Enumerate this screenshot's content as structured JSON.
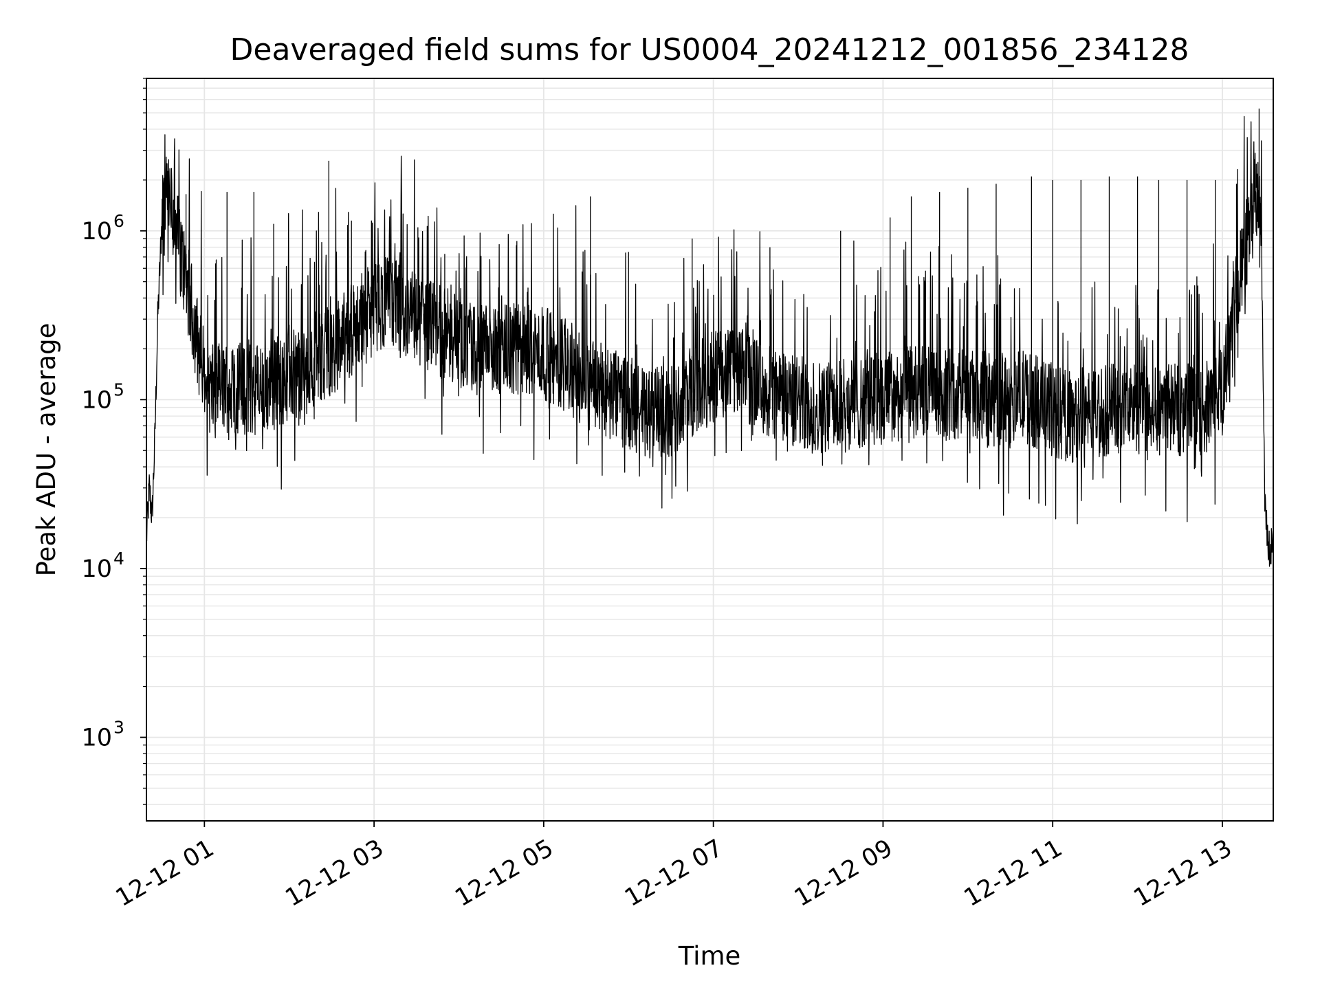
{
  "chart_data": {
    "type": "line",
    "title": "Deaveraged field sums for US0004_20241212_001856_234128",
    "xlabel": "Time",
    "ylabel": "Peak ADU - average",
    "x_axis": {
      "kind": "datetime",
      "range": [
        "2024-12-12T00:19:00",
        "2024-12-12T13:36:00"
      ],
      "tick_values": [
        "2024-12-12T01:00",
        "2024-12-12T03:00",
        "2024-12-12T05:00",
        "2024-12-12T07:00",
        "2024-12-12T09:00",
        "2024-12-12T11:00",
        "2024-12-12T13:00"
      ],
      "tick_labels": [
        "12-12 01",
        "12-12 03",
        "12-12 05",
        "12-12 07",
        "12-12 09",
        "12-12 11",
        "12-12 13"
      ],
      "tick_label_rotation_deg": 30
    },
    "y_axis": {
      "scale": "log",
      "range": [
        320,
        8000000
      ],
      "tick_values": [
        1000,
        10000,
        100000,
        1000000
      ],
      "tick_labels": [
        {
          "base": "10",
          "exp": "3"
        },
        {
          "base": "10",
          "exp": "4"
        },
        {
          "base": "10",
          "exp": "5"
        },
        {
          "base": "10",
          "exp": "6"
        }
      ]
    },
    "grid": true,
    "grid_color": "#e6e6e6",
    "line_color": "#000000",
    "series": [
      {
        "name": "",
        "points": [
          [
            "00:19",
            15000
          ],
          [
            "00:21",
            30000
          ],
          [
            "00:23",
            20000
          ],
          [
            "00:25",
            60000
          ],
          [
            "00:27",
            300000
          ],
          [
            "00:30",
            1200000
          ],
          [
            "00:33",
            1450000
          ],
          [
            "00:36",
            1350000
          ],
          [
            "00:40",
            1000000
          ],
          [
            "00:44",
            700000
          ],
          [
            "00:48",
            450000
          ],
          [
            "00:53",
            280000
          ],
          [
            "00:58",
            160000
          ],
          [
            "01:05",
            110000
          ],
          [
            "01:15",
            120000
          ],
          [
            "01:30",
            115000
          ],
          [
            "01:45",
            120000
          ],
          [
            "02:00",
            140000
          ],
          [
            "02:15",
            160000
          ],
          [
            "02:30",
            200000
          ],
          [
            "02:45",
            260000
          ],
          [
            "03:00",
            350000
          ],
          [
            "03:10",
            380000
          ],
          [
            "03:20",
            330000
          ],
          [
            "03:30",
            300000
          ],
          [
            "03:45",
            260000
          ],
          [
            "04:00",
            220000
          ],
          [
            "04:15",
            190000
          ],
          [
            "04:30",
            190000
          ],
          [
            "04:45",
            200000
          ],
          [
            "05:00",
            190000
          ],
          [
            "05:15",
            160000
          ],
          [
            "05:30",
            130000
          ],
          [
            "05:45",
            110000
          ],
          [
            "06:00",
            95000
          ],
          [
            "06:15",
            80000
          ],
          [
            "06:30",
            85000
          ],
          [
            "06:45",
            110000
          ],
          [
            "07:00",
            140000
          ],
          [
            "07:10",
            150000
          ],
          [
            "07:20",
            140000
          ],
          [
            "07:35",
            120000
          ],
          [
            "07:50",
            100000
          ],
          [
            "08:05",
            95000
          ],
          [
            "08:20",
            90000
          ],
          [
            "08:35",
            92000
          ],
          [
            "08:50",
            100000
          ],
          [
            "09:05",
            105000
          ],
          [
            "09:20",
            110000
          ],
          [
            "09:40",
            110000
          ],
          [
            "10:00",
            105000
          ],
          [
            "10:20",
            100000
          ],
          [
            "10:40",
            105000
          ],
          [
            "10:55",
            90000
          ],
          [
            "11:10",
            80000
          ],
          [
            "11:30",
            85000
          ],
          [
            "11:50",
            90000
          ],
          [
            "12:10",
            90000
          ],
          [
            "12:30",
            88000
          ],
          [
            "12:50",
            90000
          ],
          [
            "13:00",
            120000
          ],
          [
            "13:05",
            200000
          ],
          [
            "13:10",
            400000
          ],
          [
            "13:15",
            700000
          ],
          [
            "13:20",
            1100000
          ],
          [
            "13:24",
            1800000
          ],
          [
            "13:26",
            1500000
          ],
          [
            "13:28",
            500000
          ],
          [
            "13:30",
            25000
          ],
          [
            "13:32",
            15000
          ],
          [
            "13:34",
            12000
          ],
          [
            "13:36",
            18000
          ]
        ],
        "spikes": [
          [
            "00:47",
            1650000
          ],
          [
            "01:16",
            1700000
          ],
          [
            "01:35",
            1700000
          ],
          [
            "01:49",
            1100000
          ],
          [
            "02:28",
            2600000
          ],
          [
            "02:44",
            1150000
          ],
          [
            "03:31",
            1050000
          ],
          [
            "03:50",
            730000
          ],
          [
            "04:41",
            870000
          ],
          [
            "05:33",
            1600000
          ],
          [
            "06:00",
            750000
          ],
          [
            "06:45",
            900000
          ],
          [
            "07:40",
            800000
          ],
          [
            "08:30",
            1000000
          ],
          [
            "09:05",
            1200000
          ],
          [
            "09:20",
            1600000
          ],
          [
            "09:40",
            1700000
          ],
          [
            "10:00",
            1800000
          ],
          [
            "10:20",
            1900000
          ],
          [
            "10:45",
            2100000
          ],
          [
            "11:00",
            2000000
          ],
          [
            "11:20",
            2000000
          ],
          [
            "11:40",
            2100000
          ],
          [
            "12:00",
            2100000
          ],
          [
            "12:15",
            2000000
          ],
          [
            "12:35",
            2000000
          ],
          [
            "12:55",
            2000000
          ],
          [
            "13:10",
            1900000
          ],
          [
            "13:24",
            2500000
          ],
          [
            "13:26",
            5300000
          ]
        ]
      }
    ]
  }
}
